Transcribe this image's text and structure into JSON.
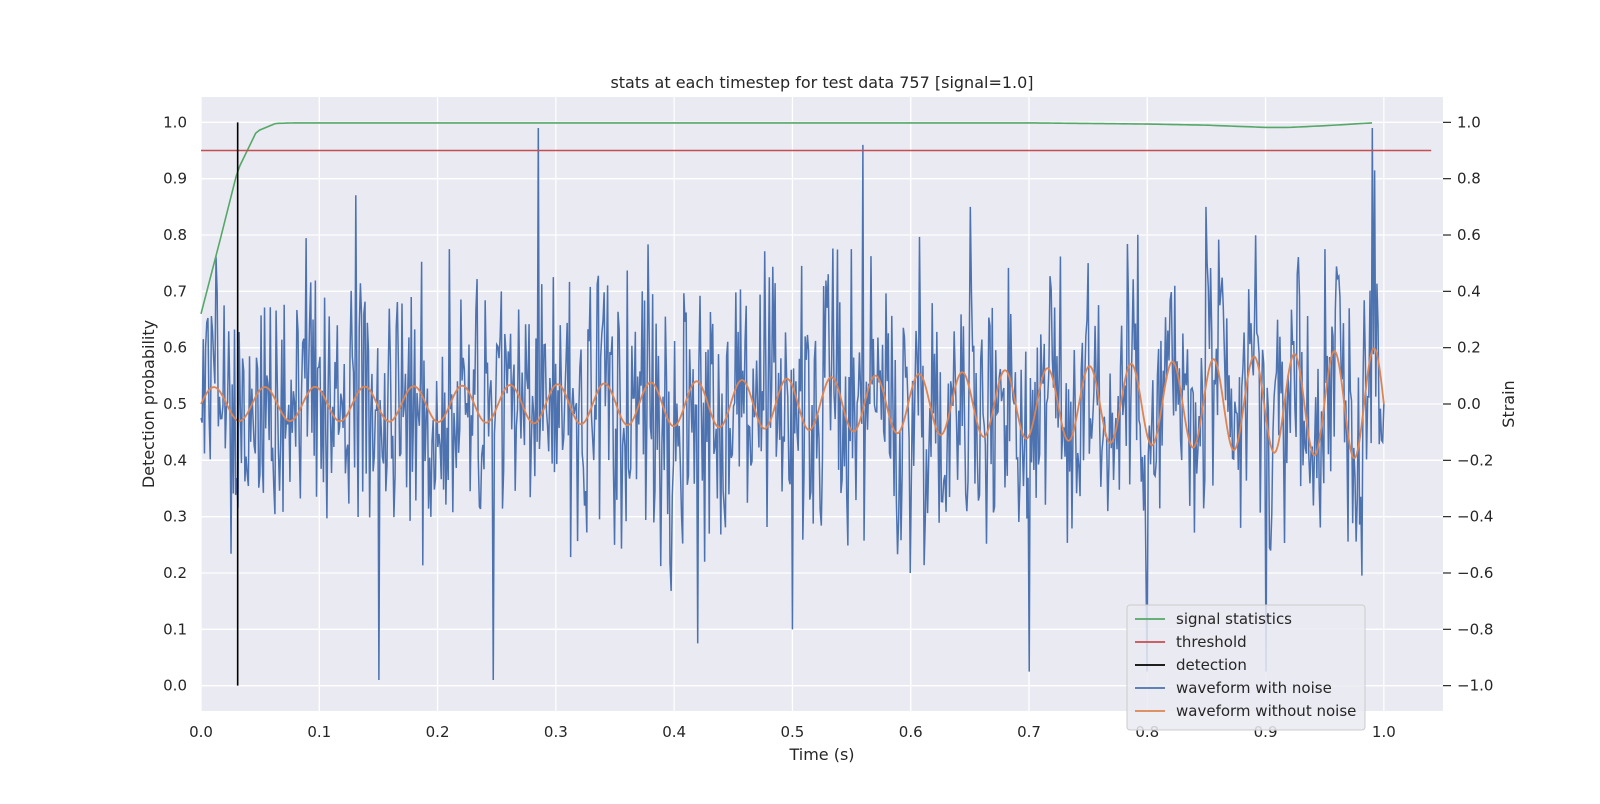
{
  "chart_data": {
    "type": "line",
    "title": "stats at each timestep for test data 757 [signal=1.0]",
    "xlabel": "Time (s)",
    "ylabel": "Detection probability",
    "y2label": "Strain",
    "xlim": [
      0.0,
      1.05
    ],
    "ylim": [
      -0.045,
      1.045
    ],
    "y2lim": [
      -1.09,
      1.09
    ],
    "x_ticks": [
      "0.0",
      "0.1",
      "0.2",
      "0.3",
      "0.4",
      "0.5",
      "0.6",
      "0.7",
      "0.8",
      "0.9",
      "1.0"
    ],
    "y_ticks": [
      "0.0",
      "0.1",
      "0.2",
      "0.3",
      "0.4",
      "0.5",
      "0.6",
      "0.7",
      "0.8",
      "0.9",
      "1.0"
    ],
    "y2_ticks": [
      "−1.0",
      "−0.8",
      "−0.6",
      "−0.4",
      "−0.2",
      "0.0",
      "0.2",
      "0.4",
      "0.6",
      "0.8",
      "1.0"
    ],
    "grid": true,
    "legend_position": "lower-right",
    "series": [
      {
        "name": "signal statistics",
        "axis": "left",
        "color": "#55a868",
        "x": [
          0.0,
          0.016,
          0.031,
          0.047,
          0.063,
          0.078,
          0.1,
          0.2,
          0.3,
          0.4,
          0.5,
          0.6,
          0.7,
          0.8,
          0.85,
          0.9,
          0.92,
          0.95,
          0.99
        ],
        "y": [
          0.66,
          0.79,
          0.915,
          0.984,
          0.998,
          0.999,
          0.999,
          0.999,
          0.999,
          0.999,
          0.999,
          0.999,
          0.999,
          0.997,
          0.995,
          0.991,
          0.991,
          0.994,
          0.999
        ]
      },
      {
        "name": "threshold",
        "axis": "left",
        "color": "#c44e52",
        "x": [
          0.0,
          1.04
        ],
        "y": [
          0.95,
          0.95
        ]
      },
      {
        "name": "detection",
        "axis": "left",
        "color": "#000000",
        "x": [
          0.031,
          0.031
        ],
        "y": [
          0.0,
          1.0
        ]
      },
      {
        "name": "waveform with noise",
        "axis": "right",
        "color": "#4c72b0",
        "x": [
          0.0,
          0.02,
          0.05,
          0.095,
          0.15,
          0.21,
          0.247,
          0.285,
          0.35,
          0.42,
          0.48,
          0.5,
          0.55,
          0.56,
          0.6,
          0.65,
          0.7,
          0.75,
          0.8,
          0.85,
          0.9,
          0.95,
          0.99,
          1.0
        ],
        "y": [
          -0.05,
          0.35,
          -0.25,
          0.3,
          -0.98,
          0.55,
          -0.98,
          0.98,
          -0.5,
          -0.85,
          0.45,
          -0.8,
          0.55,
          0.92,
          -0.6,
          0.7,
          -0.95,
          0.5,
          -0.95,
          0.7,
          -0.95,
          0.55,
          0.98,
          0.0
        ],
        "noise_amplitude": 0.45,
        "peaks_description": "high-frequency random noise between about -1.0 and 1.0 superimposed on the clean chirp"
      },
      {
        "name": "waveform without noise",
        "axis": "right",
        "color": "#dd8452",
        "chirp": {
          "start_frequency_hz": 23,
          "end_frequency_hz": 30,
          "start_amplitude": 0.06,
          "end_amplitude": 0.2,
          "t_start": 0.0,
          "t_end": 1.0
        },
        "x": [
          0.0,
          0.011,
          0.033,
          0.055,
          0.077,
          0.099,
          0.5,
          0.9,
          0.98,
          0.99,
          1.0
        ],
        "y": [
          0.0,
          0.06,
          -0.06,
          0.06,
          -0.06,
          0.06,
          0.11,
          0.17,
          -0.18,
          0.2,
          -0.11
        ]
      }
    ]
  }
}
